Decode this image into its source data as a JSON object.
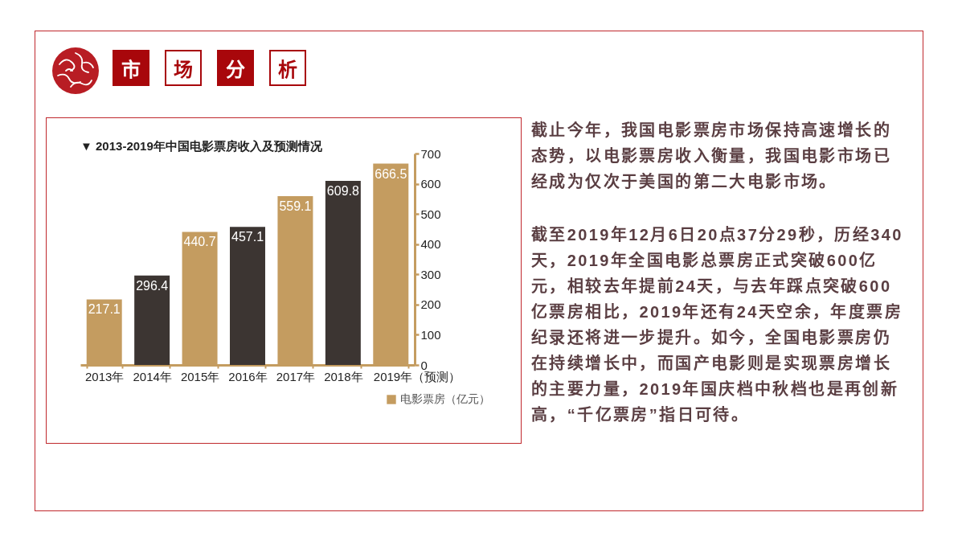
{
  "chart_data": {
    "type": "bar",
    "title": "市场分析",
    "subtitle": "▼ 2013-2019年中国电影票房收入及预测情况",
    "categories": [
      "2013年",
      "2014年",
      "2015年",
      "2016年",
      "2017年",
      "2018年",
      "2019年（预测）"
    ],
    "series": [
      {
        "name": "电影票房（亿元）",
        "color": "#c49c60",
        "colors": [
          "#c49c60",
          "#3c3532",
          "#c49c60",
          "#3c3532",
          "#c49c60",
          "#3c3532",
          "#c49c60"
        ],
        "values": [
          217.1,
          296.4,
          440.7,
          457.1,
          559.1,
          609.8,
          666.5
        ]
      }
    ],
    "ylim": [
      0,
      700
    ],
    "yticks": [
      0,
      100,
      200,
      300,
      400,
      500,
      600,
      700
    ],
    "grid": false,
    "legend": "bottom right",
    "data_labels": true,
    "annotations": [
      "截止今年，我国电影票房市场保持高速增长的态势，以电影票房收入衡量，我国电影市场已经成为仅次于美国的第二大电影市场。",
      "截至2019年12月6日20点37分29秒，历经340天，2019年全国电影总票房正式突破600亿元，相较去年提前24天，与去年踩点突破600亿票房相比，2019年还有24天空余，年度票房纪录还将进一步提升。如今，全国电影票房仍在持续增长中，而国产电影则是实现票房增长的主要力量，2019年国庆档中秋档也是再创新高，“千亿票房”指日可待。"
    ]
  }
}
